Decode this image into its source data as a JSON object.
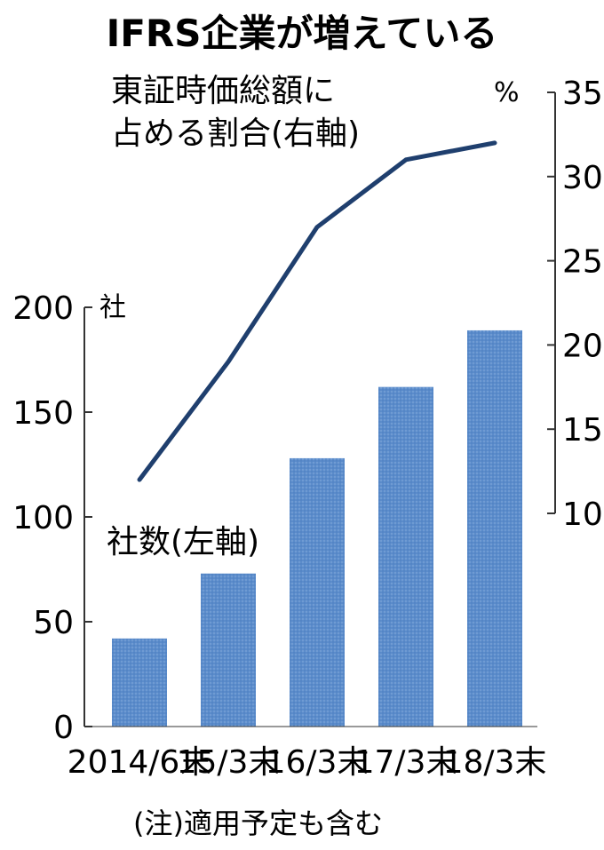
{
  "chart_data": {
    "type": "bar+line",
    "title": "IFRS企業が増えている",
    "categories": [
      "2014/6末",
      "15/3末",
      "16/3末",
      "17/3末",
      "18/3末"
    ],
    "series": [
      {
        "name": "社数(左軸)",
        "type": "bar",
        "axis": "left",
        "unit": "社",
        "values": [
          42,
          73,
          128,
          162,
          189
        ],
        "color": "#5b8ccb"
      },
      {
        "name_lines": [
          "東証時価総額に",
          "占める割合(右軸)"
        ],
        "type": "line",
        "axis": "right",
        "unit": "%",
        "values": [
          12,
          19,
          27,
          31,
          32
        ],
        "color": "#1f3f6e"
      }
    ],
    "left_axis": {
      "min": 0,
      "max": 200,
      "ticks": [
        0,
        50,
        100,
        150,
        200
      ],
      "unit": "社"
    },
    "right_axis": {
      "min": 10,
      "max": 35,
      "ticks": [
        10,
        15,
        20,
        25,
        30,
        35
      ],
      "unit": "%"
    },
    "note": "(注)適用予定も含む"
  }
}
